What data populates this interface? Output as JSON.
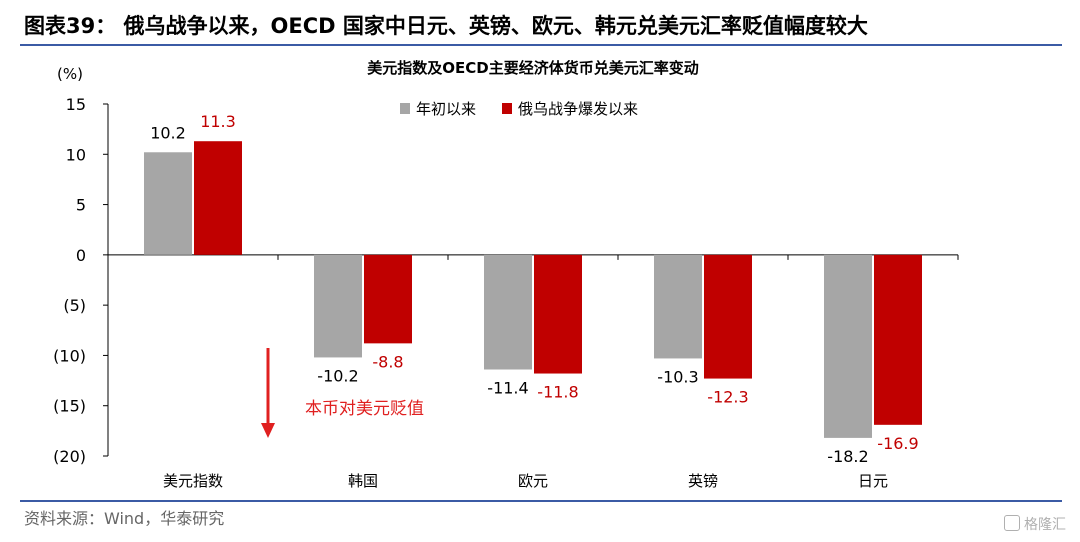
{
  "header": {
    "figure_title": "图表39：  俄乌战争以来，OECD 国家中日元、英镑、欧元、韩元兑美元汇率贬值幅度较大"
  },
  "footer": {
    "source": "资料来源：Wind，华泰研究",
    "watermark": "格隆汇"
  },
  "chart_data": {
    "type": "bar",
    "title": "美元指数及OECD主要经济体货币兑美元汇率变动",
    "ylabel": "(%)",
    "ylim": [
      -20,
      15
    ],
    "yticks": [
      15,
      10,
      5,
      0,
      -5,
      -10,
      -15,
      -20
    ],
    "ytick_labels": [
      "15",
      "10",
      "5",
      "0",
      "(5)",
      "(10)",
      "(15)",
      "(20)"
    ],
    "categories": [
      "美元指数",
      "韩国",
      "欧元",
      "英镑",
      "日元"
    ],
    "series": [
      {
        "name": "年初以来",
        "color": "#a6a6a6",
        "values": [
          10.2,
          -10.2,
          -11.4,
          -10.3,
          -18.2
        ],
        "labels": [
          "10.2",
          "-10.2",
          "-11.4",
          "-10.3",
          "-18.2"
        ]
      },
      {
        "name": "俄乌战争爆发以来",
        "color": "#c00000",
        "values": [
          11.3,
          -8.8,
          -11.8,
          -12.3,
          -16.9
        ],
        "labels": [
          "11.3",
          "-8.8",
          "-11.8",
          "-12.3",
          "-16.9"
        ]
      }
    ],
    "legend_position": "top-center",
    "grid": false,
    "annotation": {
      "text": "本币对美元贬值",
      "color": "#e02020"
    }
  }
}
